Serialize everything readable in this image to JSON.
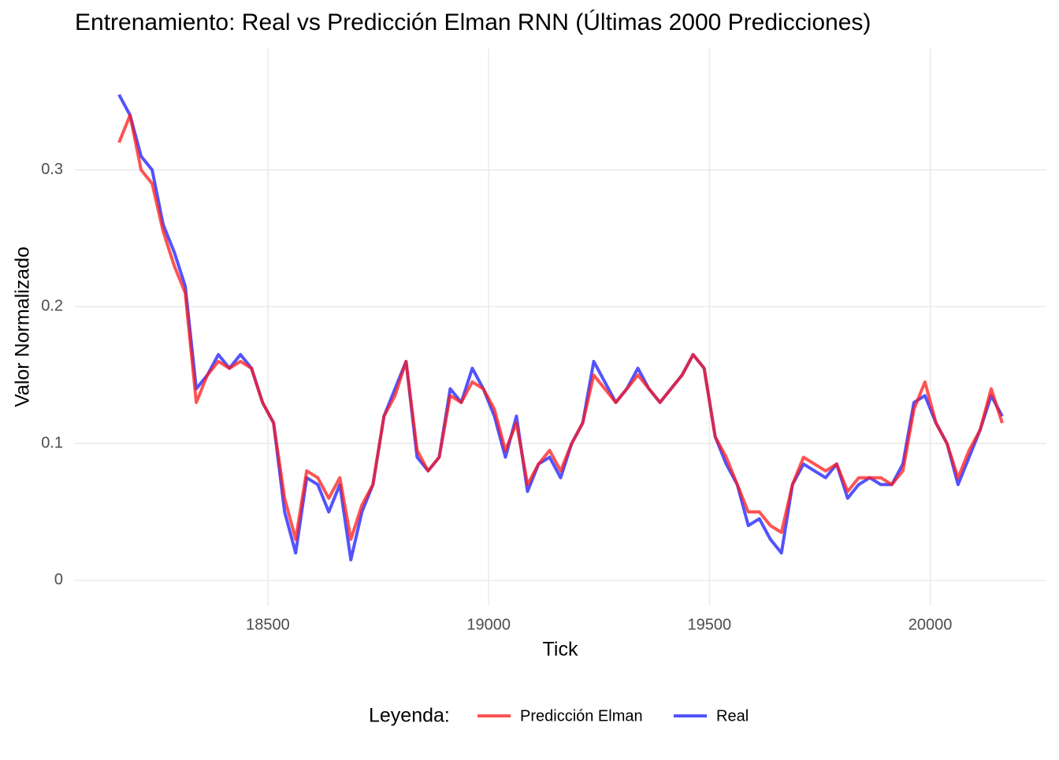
{
  "chart_data": {
    "type": "line",
    "title": "Entrenamiento: Real vs Predicción Elman RNN (Últimas 2000 Predicciones)",
    "xlabel": "Tick",
    "ylabel": "Valor Normalizado",
    "legend_title": "Leyenda:",
    "legend": "bottom",
    "grid": true,
    "x": [
      18163,
      18188,
      18213,
      18238,
      18263,
      18288,
      18313,
      18338,
      18363,
      18388,
      18413,
      18438,
      18463,
      18488,
      18513,
      18538,
      18563,
      18588,
      18613,
      18638,
      18663,
      18688,
      18713,
      18738,
      18763,
      18788,
      18813,
      18838,
      18863,
      18888,
      18913,
      18938,
      18963,
      18988,
      19013,
      19038,
      19063,
      19088,
      19113,
      19138,
      19163,
      19188,
      19213,
      19238,
      19263,
      19288,
      19313,
      19338,
      19363,
      19388,
      19413,
      19438,
      19463,
      19488,
      19513,
      19538,
      19563,
      19588,
      19613,
      19638,
      19663,
      19688,
      19713,
      19738,
      19763,
      19788,
      19813,
      19838,
      19863,
      19888,
      19913,
      19938,
      19963,
      19988,
      20013,
      20038,
      20063,
      20088,
      20113,
      20138,
      20163
    ],
    "series": [
      {
        "name": "Predicción Elman",
        "color": "#ff1a1a",
        "values": [
          0.32,
          0.34,
          0.3,
          0.29,
          0.255,
          0.23,
          0.21,
          0.13,
          0.15,
          0.16,
          0.155,
          0.16,
          0.155,
          0.13,
          0.115,
          0.06,
          0.03,
          0.08,
          0.075,
          0.06,
          0.075,
          0.03,
          0.055,
          0.07,
          0.12,
          0.135,
          0.16,
          0.095,
          0.08,
          0.09,
          0.135,
          0.13,
          0.145,
          0.14,
          0.125,
          0.095,
          0.115,
          0.07,
          0.085,
          0.095,
          0.08,
          0.1,
          0.115,
          0.15,
          0.14,
          0.13,
          0.14,
          0.15,
          0.14,
          0.13,
          0.14,
          0.15,
          0.165,
          0.155,
          0.105,
          0.09,
          0.07,
          0.05,
          0.05,
          0.04,
          0.035,
          0.07,
          0.09,
          0.085,
          0.08,
          0.085,
          0.065,
          0.075,
          0.075,
          0.075,
          0.07,
          0.08,
          0.125,
          0.145,
          0.115,
          0.1,
          0.075,
          0.095,
          0.11,
          0.14,
          0.115
        ]
      },
      {
        "name": "Real",
        "color": "#1a1aff",
        "values": [
          0.355,
          0.34,
          0.31,
          0.3,
          0.26,
          0.24,
          0.215,
          0.14,
          0.15,
          0.165,
          0.155,
          0.165,
          0.155,
          0.13,
          0.115,
          0.05,
          0.02,
          0.075,
          0.07,
          0.05,
          0.07,
          0.015,
          0.05,
          0.07,
          0.12,
          0.14,
          0.16,
          0.09,
          0.08,
          0.09,
          0.14,
          0.13,
          0.155,
          0.14,
          0.12,
          0.09,
          0.12,
          0.065,
          0.085,
          0.09,
          0.075,
          0.1,
          0.115,
          0.16,
          0.145,
          0.13,
          0.14,
          0.155,
          0.14,
          0.13,
          0.14,
          0.15,
          0.165,
          0.155,
          0.105,
          0.085,
          0.07,
          0.04,
          0.045,
          0.03,
          0.02,
          0.07,
          0.085,
          0.08,
          0.075,
          0.085,
          0.06,
          0.07,
          0.075,
          0.07,
          0.07,
          0.085,
          0.13,
          0.135,
          0.115,
          0.1,
          0.07,
          0.09,
          0.11,
          0.135,
          0.12
        ]
      }
    ],
    "xlim": [
      18063,
      20263
    ],
    "xticks": [
      18500,
      19000,
      19500,
      20000
    ],
    "ylim": [
      -0.0185,
      0.3885
    ],
    "yticks": [
      0.0,
      0.1,
      0.2,
      0.3
    ]
  }
}
